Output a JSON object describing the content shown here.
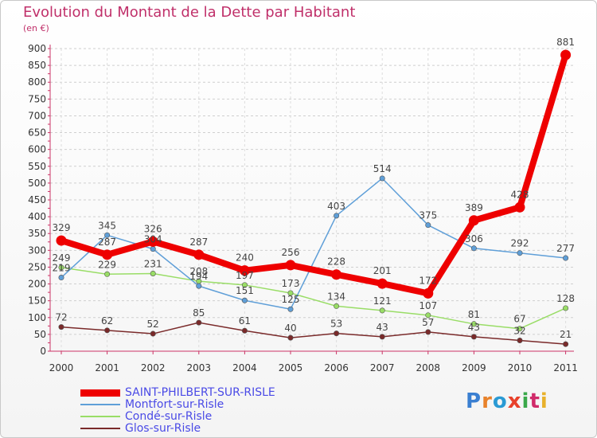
{
  "title": "Evolution du Montant de la Dette par Habitant",
  "subtitle": "(en €)",
  "logo": "Proxiti",
  "chart_data": {
    "type": "line",
    "categories": [
      "2000",
      "2001",
      "2002",
      "2003",
      "2004",
      "2005",
      "2006",
      "2007",
      "2008",
      "2009",
      "2010",
      "2011"
    ],
    "ylim": [
      0,
      900
    ],
    "yticks": [
      0,
      50,
      100,
      150,
      200,
      250,
      300,
      350,
      400,
      450,
      500,
      550,
      600,
      650,
      700,
      750,
      800,
      850,
      900
    ],
    "grid": true,
    "legend_position": "bottom-left",
    "series": [
      {
        "name": "SAINT-PHILBERT-SUR-RISLE",
        "color": "#ee0000",
        "values": [
          329,
          287,
          326,
          287,
          240,
          256,
          228,
          201,
          172,
          389,
          428,
          881
        ]
      },
      {
        "name": "Montfort-sur-Risle",
        "color": "#5f9fd8",
        "values": [
          219,
          345,
          304,
          194,
          151,
          125,
          403,
          514,
          375,
          306,
          292,
          277
        ]
      },
      {
        "name": "Condé-sur-Risle",
        "color": "#99dd66",
        "values": [
          249,
          229,
          231,
          208,
          197,
          173,
          134,
          121,
          107,
          81,
          67,
          128
        ]
      },
      {
        "name": "Glos-sur-Risle",
        "color": "#7a2a2a",
        "values": [
          72,
          62,
          52,
          85,
          61,
          40,
          53,
          43,
          57,
          43,
          32,
          21
        ]
      }
    ]
  }
}
